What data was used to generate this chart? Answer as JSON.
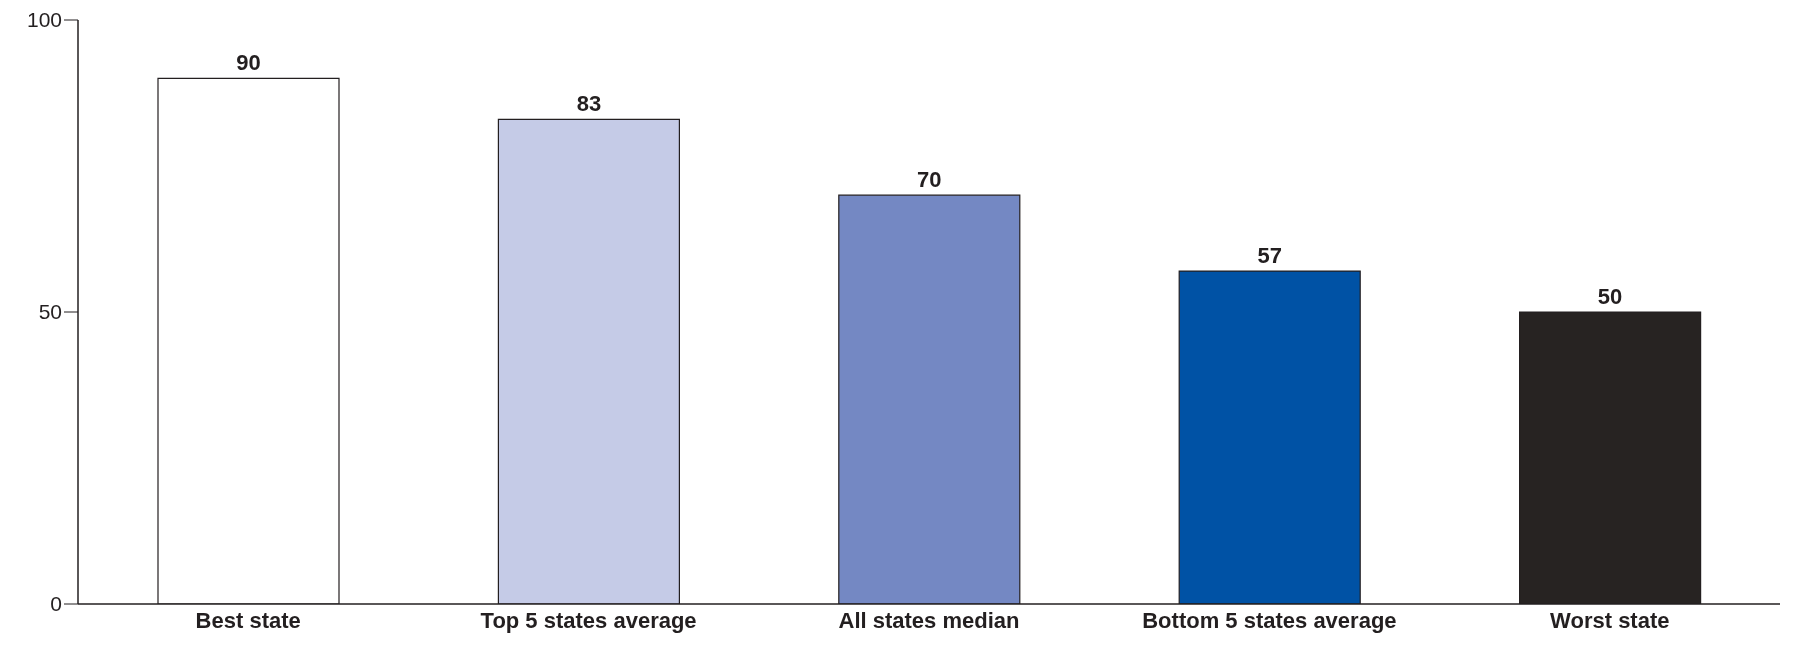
{
  "chart_data": {
    "type": "bar",
    "categories": [
      "Best state",
      "Top 5 states average",
      "All states median",
      "Bottom 5 states average",
      "Worst state"
    ],
    "values": [
      90,
      83,
      70,
      57,
      50
    ],
    "colors": [
      "#ffffff",
      "#c5cbe7",
      "#7488c3",
      "#0052a5",
      "#272322"
    ],
    "ylim": [
      0,
      100
    ],
    "yticks": [
      0,
      50,
      100
    ],
    "data_labels": true
  }
}
